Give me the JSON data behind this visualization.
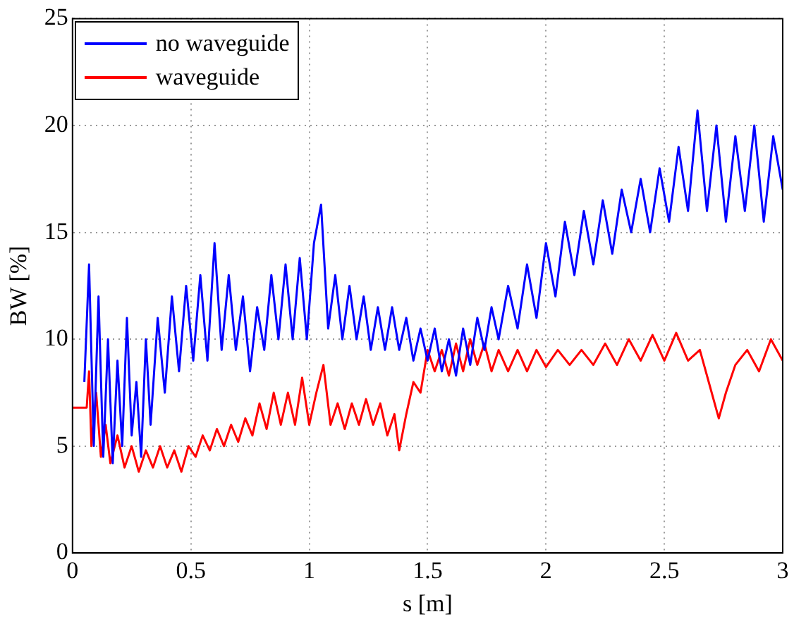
{
  "chart_data": {
    "type": "line",
    "xlabel": "s [m]",
    "ylabel": "BW [%]",
    "xlim": [
      0,
      3
    ],
    "xticks": [
      0,
      0.5,
      1,
      1.5,
      2,
      2.5,
      3
    ],
    "ylim": [
      0,
      25
    ],
    "yticks": [
      0,
      5,
      10,
      15,
      20,
      25
    ],
    "grid": true,
    "legend": "top left",
    "marker": "none",
    "line_style": "solid",
    "series": [
      {
        "name": "no waveguide",
        "color": "#0000ff",
        "x": [
          0.05,
          0.07,
          0.09,
          0.11,
          0.13,
          0.15,
          0.17,
          0.19,
          0.21,
          0.23,
          0.25,
          0.27,
          0.29,
          0.31,
          0.33,
          0.36,
          0.39,
          0.42,
          0.45,
          0.48,
          0.51,
          0.54,
          0.57,
          0.6,
          0.63,
          0.66,
          0.69,
          0.72,
          0.75,
          0.78,
          0.81,
          0.84,
          0.87,
          0.9,
          0.93,
          0.96,
          0.99,
          1.02,
          1.05,
          1.08,
          1.11,
          1.14,
          1.17,
          1.2,
          1.23,
          1.26,
          1.29,
          1.32,
          1.35,
          1.38,
          1.41,
          1.44,
          1.47,
          1.5,
          1.53,
          1.56,
          1.59,
          1.62,
          1.65,
          1.68,
          1.71,
          1.74,
          1.77,
          1.8,
          1.84,
          1.88,
          1.92,
          1.96,
          2,
          2.04,
          2.08,
          2.12,
          2.16,
          2.2,
          2.24,
          2.28,
          2.32,
          2.36,
          2.4,
          2.44,
          2.48,
          2.52,
          2.56,
          2.6,
          2.64,
          2.68,
          2.72,
          2.76,
          2.8,
          2.84,
          2.88,
          2.92,
          2.96,
          3
        ],
        "values": [
          8,
          13.5,
          5,
          12,
          4.5,
          10,
          4.2,
          9,
          5,
          11,
          5.5,
          8,
          4.5,
          10,
          6,
          11,
          7.5,
          12,
          8.5,
          12.5,
          9,
          13,
          9,
          14.5,
          9.5,
          13,
          9.5,
          12,
          8.5,
          11.5,
          9.5,
          13,
          10,
          13.5,
          10,
          13.8,
          10,
          14.5,
          16.3,
          10.5,
          13,
          10,
          12.5,
          10,
          12,
          9.5,
          11.5,
          9.5,
          11.5,
          9.5,
          11,
          9,
          10.5,
          9,
          10.5,
          8.5,
          10,
          8.3,
          10.5,
          8.8,
          11,
          9.5,
          11.5,
          10,
          12.5,
          10.5,
          13.5,
          11,
          14.5,
          12,
          15.5,
          13,
          16,
          13.5,
          16.5,
          14,
          17,
          15,
          17.5,
          15,
          18,
          15.5,
          19,
          16,
          20.7,
          16,
          20,
          15.5,
          19.5,
          16,
          20,
          15.5,
          19.5,
          17
        ]
      },
      {
        "name": "waveguide",
        "color": "#ff0000",
        "x": [
          0,
          0.06,
          0.07,
          0.08,
          0.1,
          0.12,
          0.14,
          0.16,
          0.19,
          0.22,
          0.25,
          0.28,
          0.31,
          0.34,
          0.37,
          0.4,
          0.43,
          0.46,
          0.49,
          0.52,
          0.55,
          0.58,
          0.61,
          0.64,
          0.67,
          0.7,
          0.73,
          0.76,
          0.79,
          0.82,
          0.85,
          0.88,
          0.91,
          0.94,
          0.97,
          1,
          1.03,
          1.06,
          1.09,
          1.12,
          1.15,
          1.18,
          1.21,
          1.24,
          1.27,
          1.3,
          1.33,
          1.36,
          1.38,
          1.41,
          1.44,
          1.47,
          1.5,
          1.53,
          1.56,
          1.59,
          1.62,
          1.65,
          1.68,
          1.71,
          1.74,
          1.77,
          1.8,
          1.84,
          1.88,
          1.92,
          1.96,
          2,
          2.05,
          2.1,
          2.15,
          2.2,
          2.25,
          2.3,
          2.35,
          2.4,
          2.45,
          2.5,
          2.55,
          2.6,
          2.65,
          2.7,
          2.73,
          2.76,
          2.8,
          2.85,
          2.9,
          2.95,
          3
        ],
        "values": [
          6.8,
          6.8,
          8.5,
          5,
          7.5,
          4.5,
          6,
          4.2,
          5.5,
          4,
          5,
          3.8,
          4.8,
          4,
          5,
          4,
          4.8,
          3.8,
          5,
          4.5,
          5.5,
          4.8,
          5.8,
          5,
          6,
          5.2,
          6.3,
          5.5,
          7,
          5.8,
          7.5,
          6,
          7.5,
          6,
          8.2,
          6,
          7.5,
          8.8,
          6,
          7,
          5.8,
          7,
          6,
          7.2,
          6,
          7,
          5.5,
          6.5,
          4.8,
          6.5,
          8,
          7.5,
          9.5,
          8.5,
          9.5,
          8.3,
          9.8,
          8.5,
          10,
          8.8,
          9.8,
          8.5,
          9.5,
          8.5,
          9.5,
          8.5,
          9.5,
          8.7,
          9.5,
          8.8,
          9.5,
          8.8,
          9.8,
          8.8,
          10,
          9,
          10.2,
          9,
          10.3,
          9,
          9.5,
          7.5,
          6.3,
          7.5,
          8.8,
          9.5,
          8.5,
          10,
          9
        ]
      }
    ]
  }
}
